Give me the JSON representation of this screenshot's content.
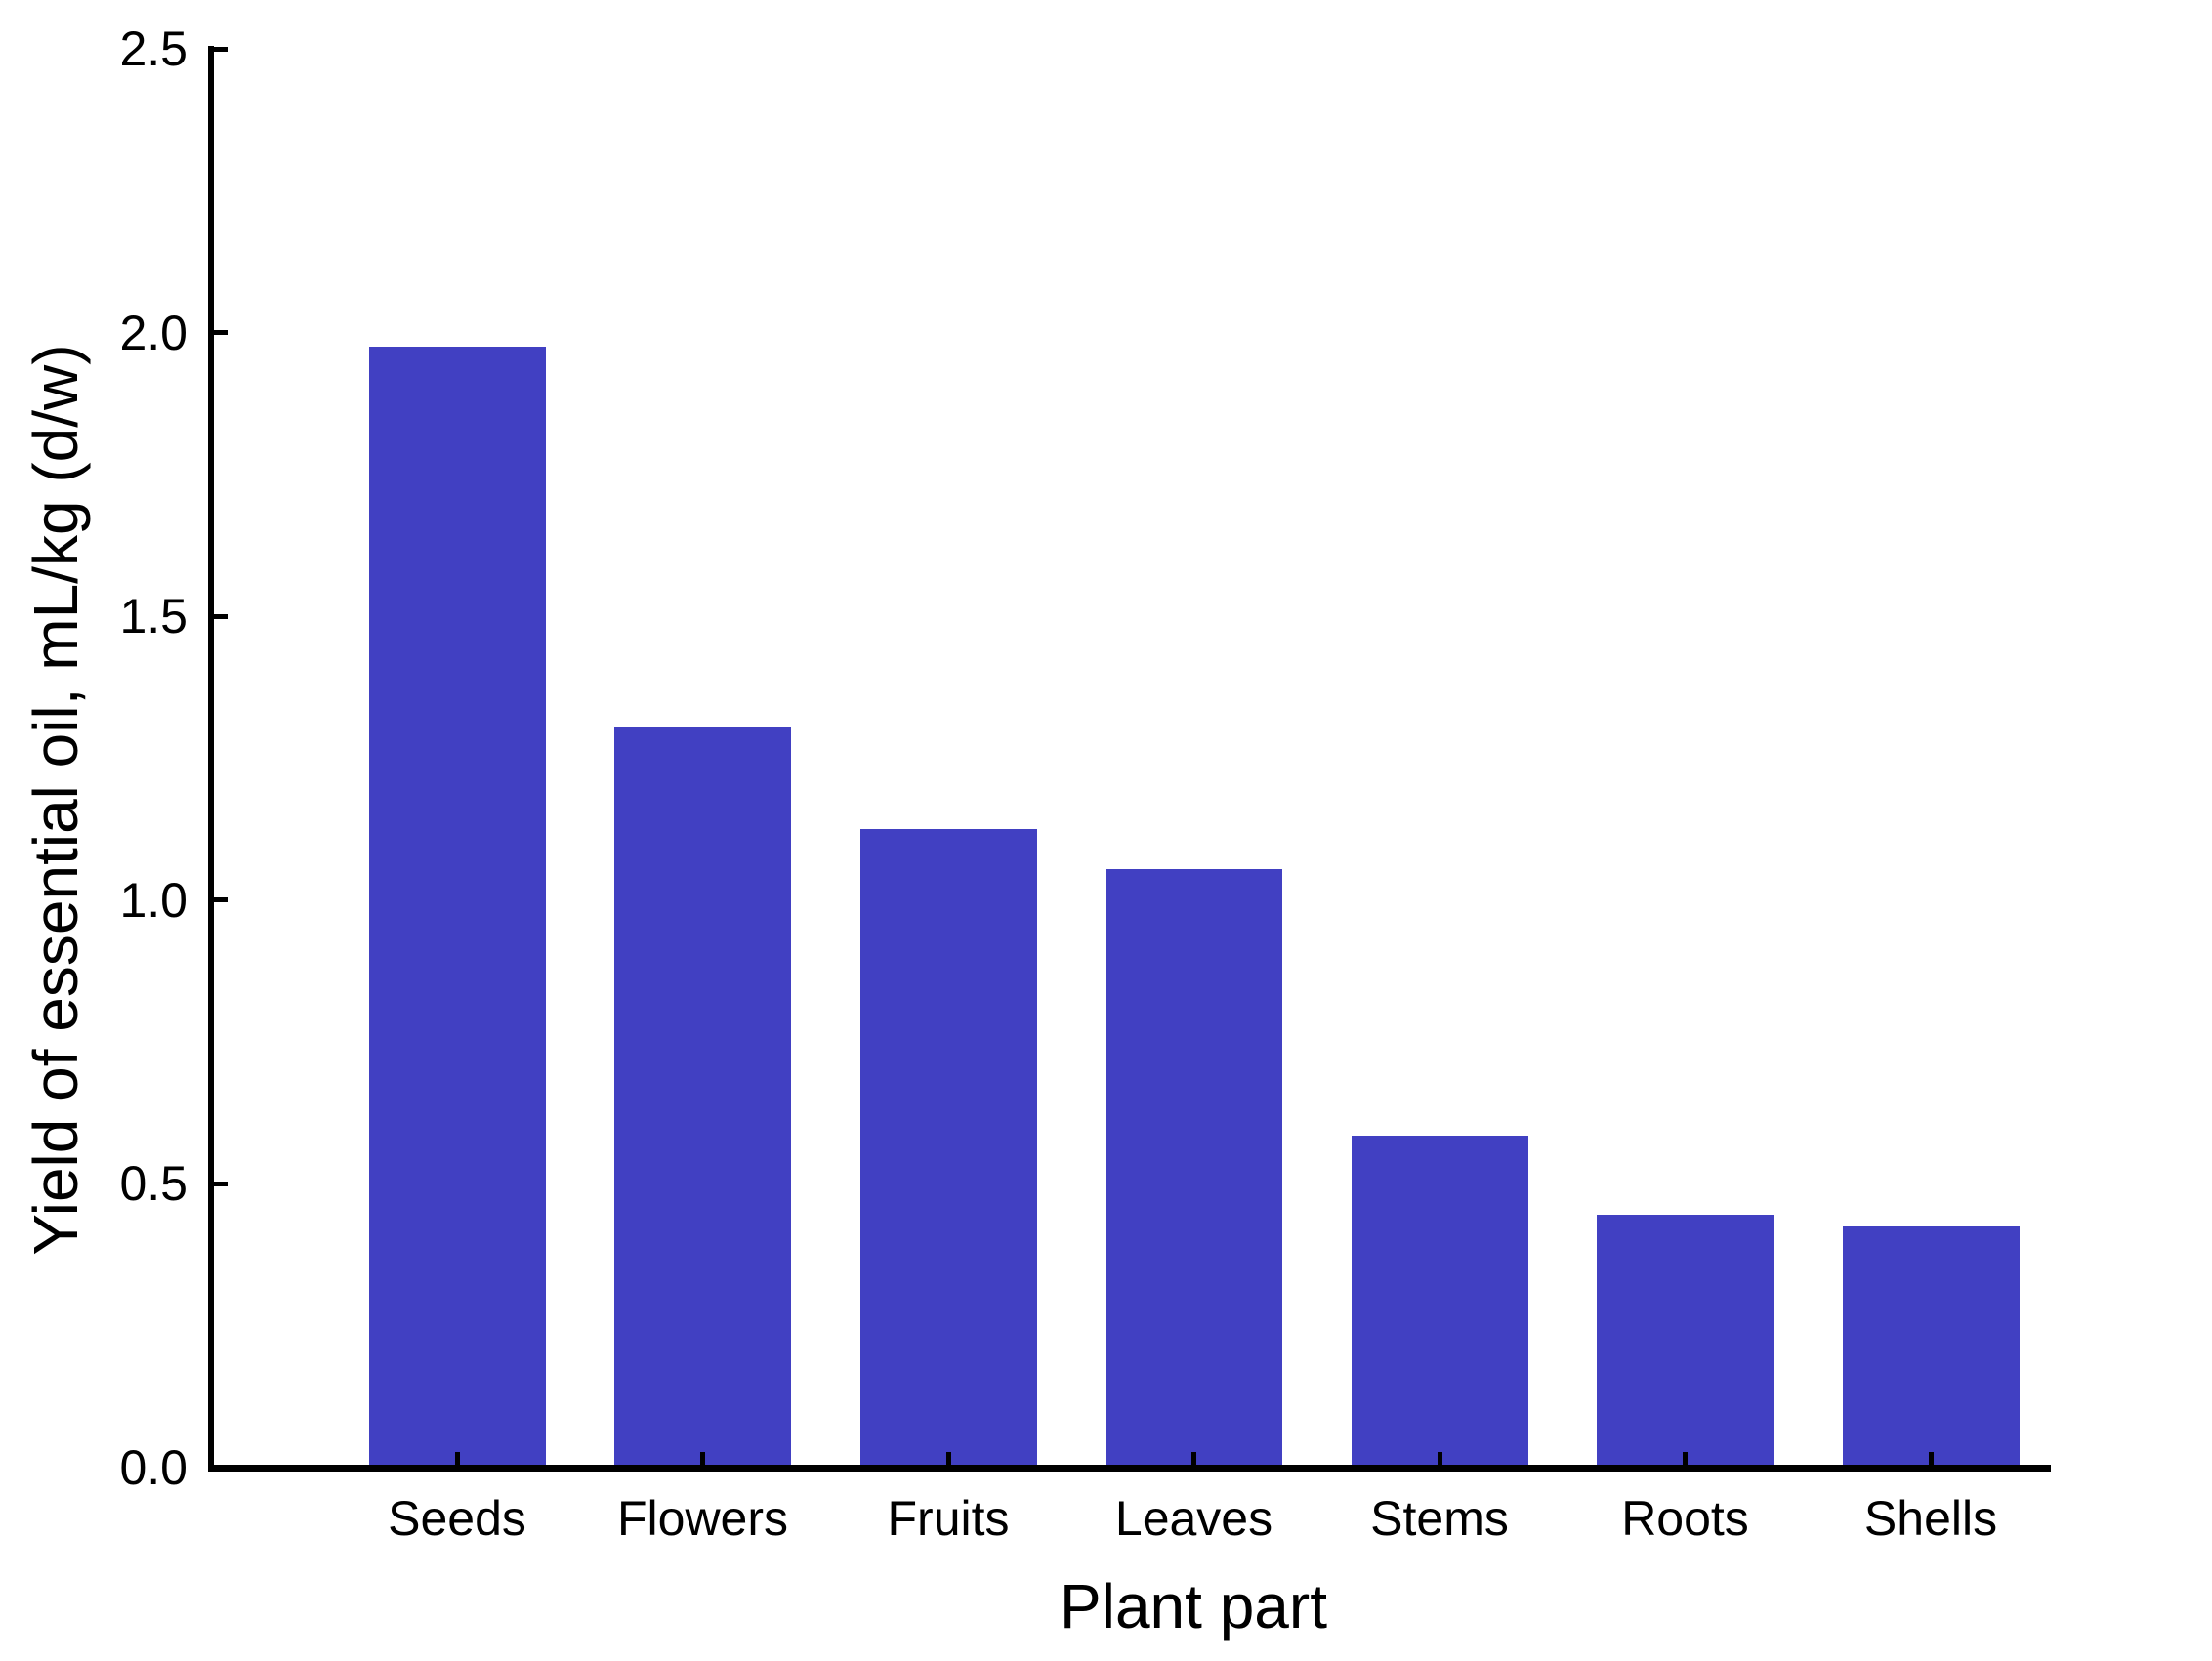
{
  "chart_data": {
    "type": "bar",
    "title": "",
    "categories": [
      "Seeds",
      "Flowers",
      "Fruits",
      "Leaves",
      "Stems",
      "Roots",
      "Shells"
    ],
    "values": [
      1.97,
      1.3,
      1.12,
      1.05,
      0.58,
      0.44,
      0.42
    ],
    "series_name": "Yield of essential oil",
    "xlabel": "Plant part",
    "ylabel": "Yield of essential oil, mL/kg (d/w)",
    "ylim": [
      0,
      2.5
    ],
    "ytick_values": [
      0,
      0.5,
      1.0,
      1.5,
      2.0,
      2.5
    ],
    "ytick_labels": [
      "0.0",
      "0.5",
      "1.0",
      "1.5",
      "2.0",
      "2.5"
    ],
    "grid": false,
    "legend": null,
    "bar_color": "#4140C2",
    "axis_color": "#000000",
    "text_color": "#000000",
    "background_color": "#FFFFFF"
  }
}
